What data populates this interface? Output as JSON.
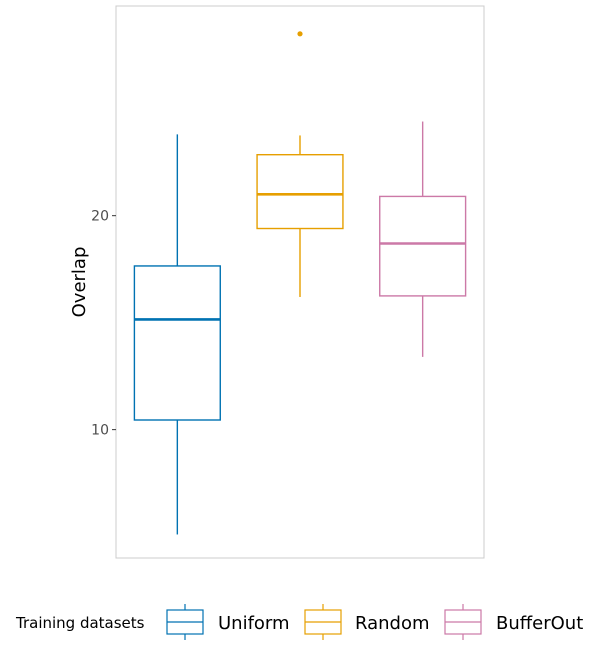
{
  "chart_data": {
    "type": "box",
    "title": "",
    "xlabel": "",
    "ylabel": "Overlap",
    "ylim": [
      4.0,
      29.8
    ],
    "y_ticks": [
      10,
      20
    ],
    "grid": false,
    "legend": {
      "title": "Training datasets",
      "position": "bottom"
    },
    "series": [
      {
        "name": "Uniform",
        "color": "#0072B2",
        "whisker_low": 5.1,
        "q1": 10.45,
        "median": 15.15,
        "q3": 17.65,
        "whisker_high": 23.8,
        "outliers": []
      },
      {
        "name": "Random",
        "color": "#E69F00",
        "whisker_low": 16.2,
        "q1": 19.4,
        "median": 21.0,
        "q3": 22.85,
        "whisker_high": 23.75,
        "outliers": [
          28.5
        ]
      },
      {
        "name": "BufferOut",
        "color": "#CC79A7",
        "whisker_low": 13.4,
        "q1": 16.25,
        "median": 18.7,
        "q3": 20.9,
        "whisker_high": 24.4,
        "outliers": []
      }
    ]
  }
}
